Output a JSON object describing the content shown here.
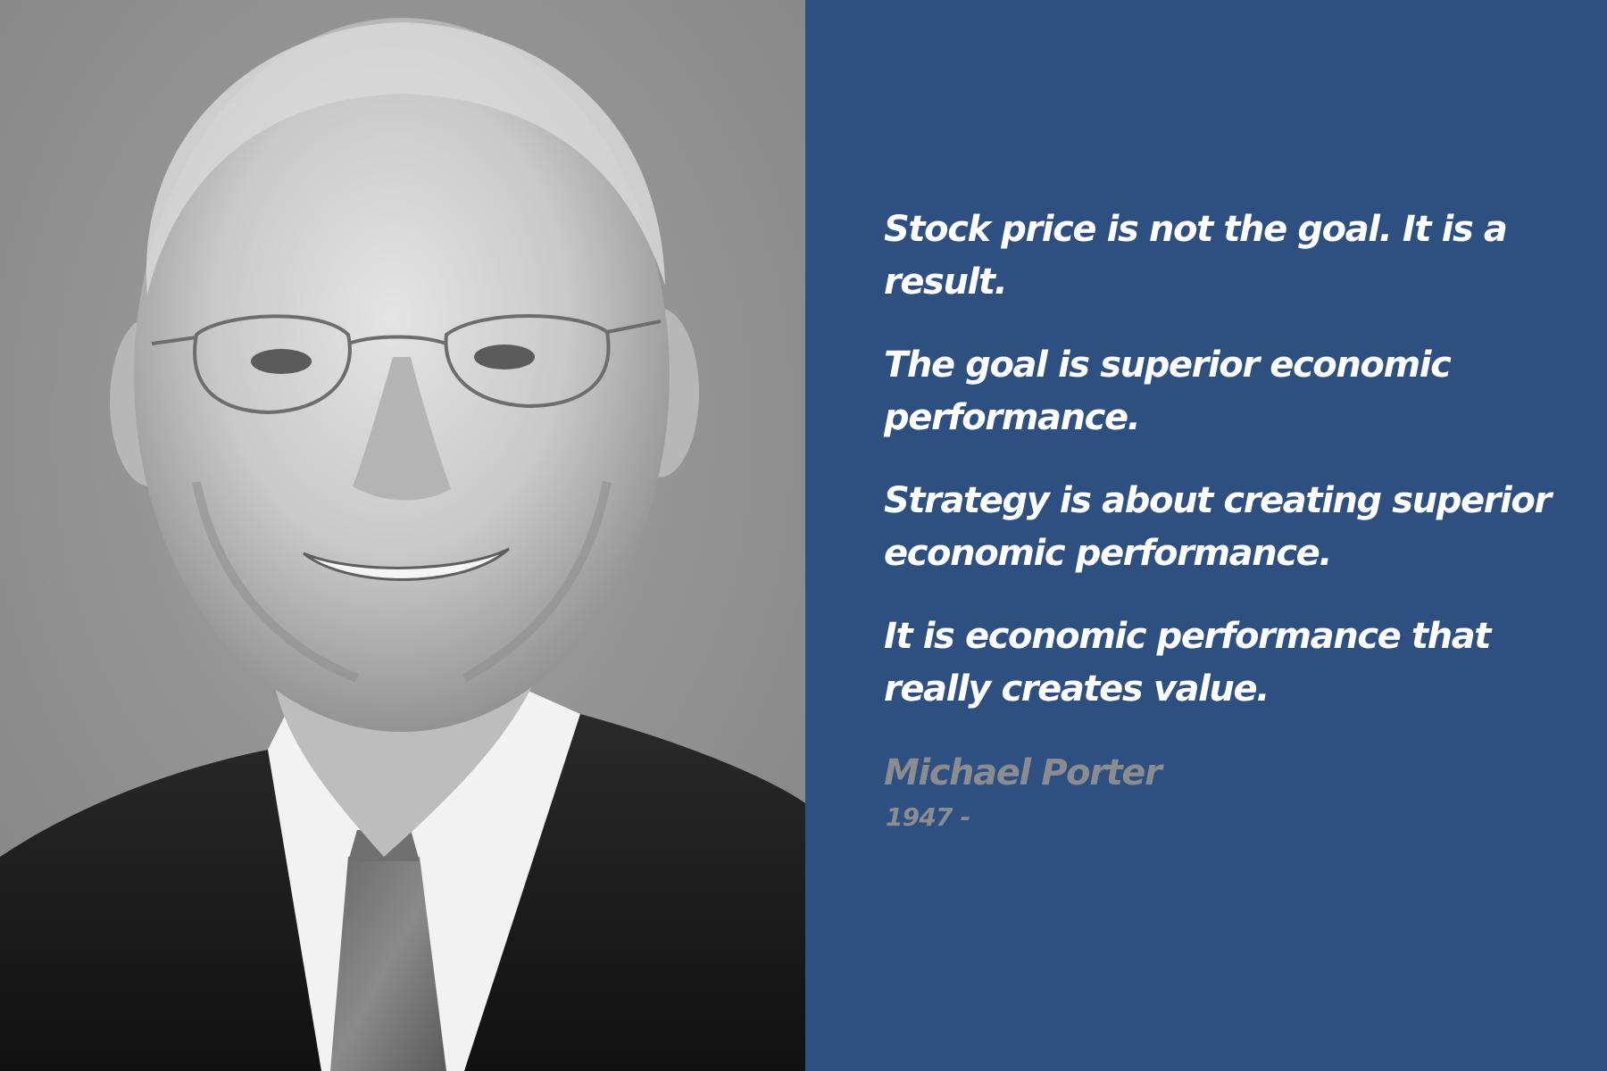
{
  "colors": {
    "panel_background": "#2d5080",
    "quote_text": "#ffffff",
    "attribution_text": "#8a8c90",
    "photo_background": "#909090"
  },
  "portrait": {
    "icon": "portrait-photo-icon"
  },
  "quote": {
    "lines": [
      "Stock price is not the goal.  It is a\nresult.",
      "The goal is superior economic\nperformance.",
      "Strategy is about creating superior\neconomic performance.",
      "It is economic performance that\nreally creates value."
    ]
  },
  "author": {
    "name": "Michael Porter",
    "years": "1947 -"
  }
}
